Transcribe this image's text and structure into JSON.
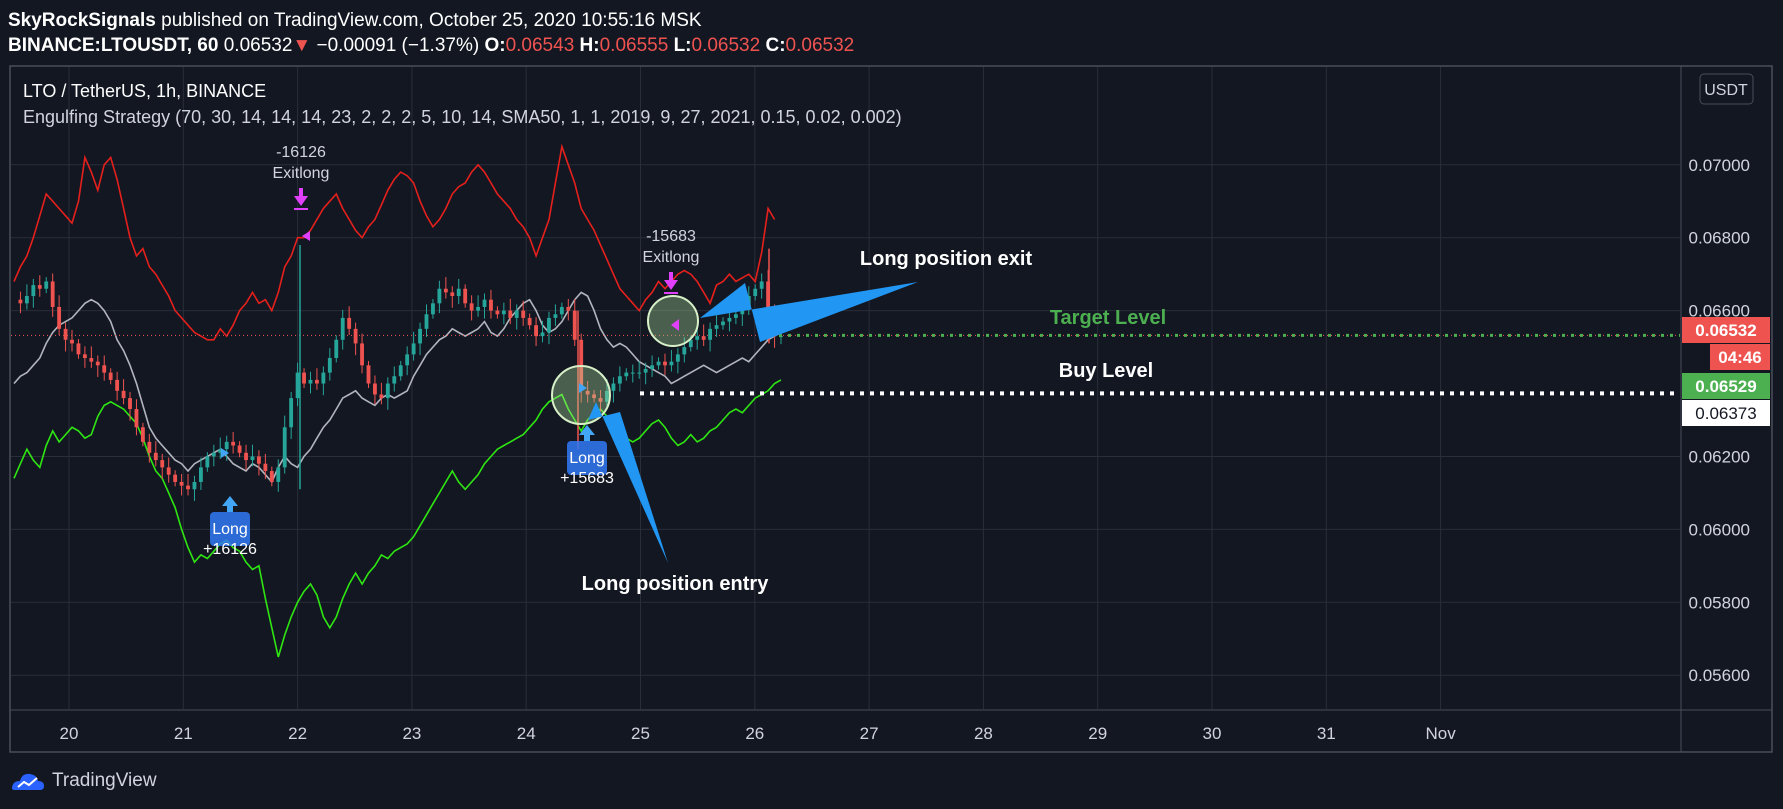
{
  "header": {
    "author": "SkyRockSignals",
    "published_text": "published on TradingView.com, October 25, 2020 10:55:16 MSK",
    "symbol": "BINANCE:LTOUSDT, 60",
    "price": "0.06532",
    "change": "−0.00091 (−1.37%)",
    "o_label": "O:",
    "o_value": "0.06543",
    "h_label": "H:",
    "h_value": "0.06555",
    "l_label": "L:",
    "l_value": "0.06532",
    "c_label": "C:",
    "c_value": "0.06532"
  },
  "legend": {
    "title": "LTO / TetherUS, 1h, BINANCE",
    "indicator": "Engulfing Strategy (70, 30, 14, 14, 14, 23, 2, 2, 2, 5, 10, 14, SMA50, 1, 1, 2019, 9, 27, 2021, 0.15, 0.02, 0.002)"
  },
  "currency_badge": "USDT",
  "footer": {
    "brand": "TradingView"
  },
  "colors": {
    "background": "#131722",
    "grid": "#2a2e39",
    "up": "#26a69a",
    "down": "#ef5350",
    "upper_band": "#e5201c",
    "lower_band": "#2ee612",
    "middle_line": "#b2b5be",
    "arrow": "#2196f3",
    "marker": "#e040fb",
    "target": "#4caf50"
  },
  "chart_data": {
    "type": "candlestick",
    "y_ticks": [
      "0.07000",
      "0.06800",
      "0.06600",
      "0.06200",
      "0.06000",
      "0.05800",
      "0.05600"
    ],
    "ylim": [
      0.0551,
      0.0726
    ],
    "x_ticks": [
      "20",
      "21",
      "22",
      "23",
      "24",
      "25",
      "26",
      "27",
      "28",
      "29",
      "30",
      "31",
      "Nov"
    ],
    "price_labels": {
      "last": "0.06532",
      "countdown": "04:46",
      "buy": "0.06529",
      "white": "0.06373"
    },
    "trades": [
      {
        "type": "entry",
        "label": "Long",
        "qty": "+16126",
        "date": "21"
      },
      {
        "type": "exit",
        "label": "Exitlong",
        "qty": "-16126",
        "date": "21.7"
      },
      {
        "type": "entry",
        "label": "Long",
        "qty": "+15683",
        "date": "23.9"
      },
      {
        "type": "exit",
        "label": "Exitlong",
        "qty": "-15683",
        "date": "24.6"
      }
    ],
    "annotations": {
      "exit": "Long position exit",
      "entry": "Long position entry",
      "target": "Target Level",
      "buy": "Buy Level"
    },
    "close_series": [
      0.0663,
      0.0662,
      0.0664,
      0.0667,
      0.0666,
      0.0668,
      0.0661,
      0.0655,
      0.0652,
      0.0651,
      0.0648,
      0.0647,
      0.0646,
      0.0645,
      0.0643,
      0.0641,
      0.0638,
      0.0636,
      0.0633,
      0.0628,
      0.0624,
      0.0621,
      0.0619,
      0.0617,
      0.0615,
      0.0613,
      0.0612,
      0.0611,
      0.0613,
      0.0617,
      0.062,
      0.0621,
      0.0622,
      0.0624,
      0.0623,
      0.0621,
      0.0619,
      0.062,
      0.0618,
      0.0616,
      0.0613,
      0.0617,
      0.0628,
      0.0636,
      0.0643,
      0.064,
      0.0641,
      0.064,
      0.0643,
      0.0647,
      0.0652,
      0.0658,
      0.0655,
      0.0651,
      0.0645,
      0.064,
      0.0637,
      0.0636,
      0.064,
      0.0642,
      0.0645,
      0.0648,
      0.0651,
      0.0655,
      0.0659,
      0.0662,
      0.0666,
      0.0665,
      0.0664,
      0.0666,
      0.0662,
      0.066,
      0.0661,
      0.0663,
      0.066,
      0.0659,
      0.066,
      0.0658,
      0.066,
      0.0658,
      0.0656,
      0.0653,
      0.0654,
      0.0658,
      0.0659,
      0.0661,
      0.066,
      0.0652,
      0.0638,
      0.0637,
      0.0636,
      0.0635,
      0.0638,
      0.064,
      0.0642,
      0.0643,
      0.0643,
      0.0643,
      0.0644,
      0.0645,
      0.0646,
      0.0645,
      0.0646,
      0.0648,
      0.065,
      0.0652,
      0.0653,
      0.0652,
      0.0655,
      0.0656,
      0.0657,
      0.0658,
      0.0659,
      0.0661,
      0.0664,
      0.0666,
      0.0668,
      0.066,
      0.0653,
      0.0653
    ],
    "upper_band": [
      0.0668,
      0.0672,
      0.0675,
      0.068,
      0.0686,
      0.0692,
      0.069,
      0.0688,
      0.0686,
      0.0684,
      0.069,
      0.0702,
      0.0698,
      0.0693,
      0.07,
      0.0702,
      0.0696,
      0.0688,
      0.068,
      0.0675,
      0.0677,
      0.0672,
      0.067,
      0.0667,
      0.0664,
      0.066,
      0.0658,
      0.0656,
      0.0654,
      0.0653,
      0.0652,
      0.0652,
      0.0655,
      0.0653,
      0.0656,
      0.066,
      0.0662,
      0.0665,
      0.0662,
      0.0663,
      0.066,
      0.0665,
      0.0672,
      0.0675,
      0.068,
      0.068,
      0.0682,
      0.0685,
      0.0688,
      0.069,
      0.0692,
      0.0688,
      0.0685,
      0.0682,
      0.068,
      0.0683,
      0.0685,
      0.0689,
      0.0693,
      0.0696,
      0.0698,
      0.0697,
      0.0695,
      0.069,
      0.0686,
      0.0683,
      0.0685,
      0.0688,
      0.0692,
      0.0694,
      0.0695,
      0.0698,
      0.07,
      0.0698,
      0.0695,
      0.0692,
      0.069,
      0.0688,
      0.0685,
      0.0683,
      0.068,
      0.0675,
      0.068,
      0.0685,
      0.0695,
      0.0705,
      0.07,
      0.0695,
      0.0688,
      0.0685,
      0.0682,
      0.0678,
      0.0674,
      0.067,
      0.0666,
      0.0664,
      0.0662,
      0.066,
      0.0663,
      0.0665,
      0.0668,
      0.0666,
      0.0668,
      0.067,
      0.0671,
      0.067,
      0.0668,
      0.0665,
      0.0662,
      0.0667,
      0.0668,
      0.067,
      0.0668,
      0.0669,
      0.067,
      0.0668,
      0.0676,
      0.0688,
      0.0685
    ],
    "middle_line": [
      0.064,
      0.0642,
      0.0643,
      0.0645,
      0.0647,
      0.0651,
      0.0654,
      0.0656,
      0.0657,
      0.0658,
      0.066,
      0.0662,
      0.0663,
      0.0662,
      0.066,
      0.0657,
      0.0652,
      0.0649,
      0.0645,
      0.064,
      0.0634,
      0.0628,
      0.0625,
      0.0623,
      0.0621,
      0.0619,
      0.0618,
      0.0616,
      0.0618,
      0.0619,
      0.062,
      0.0621,
      0.0622,
      0.062,
      0.0618,
      0.0617,
      0.0616,
      0.0618,
      0.0617,
      0.0615,
      0.0613,
      0.0617,
      0.062,
      0.0618,
      0.0617,
      0.062,
      0.0622,
      0.0625,
      0.0628,
      0.063,
      0.0633,
      0.0636,
      0.0637,
      0.0638,
      0.0636,
      0.0635,
      0.0634,
      0.0636,
      0.0637,
      0.0636,
      0.0637,
      0.0638,
      0.0642,
      0.0645,
      0.0648,
      0.065,
      0.0652,
      0.0653,
      0.0655,
      0.0654,
      0.0653,
      0.0654,
      0.0655,
      0.0657,
      0.0654,
      0.0653,
      0.0655,
      0.0658,
      0.066,
      0.0662,
      0.0663,
      0.066,
      0.0656,
      0.0654,
      0.0655,
      0.0657,
      0.066,
      0.0663,
      0.0665,
      0.0664,
      0.066,
      0.0655,
      0.0652,
      0.065,
      0.0651,
      0.065,
      0.0648,
      0.0646,
      0.0645,
      0.0644,
      0.0643,
      0.0642,
      0.064,
      0.0641,
      0.0642,
      0.0643,
      0.0644,
      0.0645,
      0.0644,
      0.0643,
      0.0644,
      0.0645,
      0.0646,
      0.0647,
      0.0646,
      0.0648,
      0.065,
      0.0652,
      0.0653,
      0.0654
    ],
    "lower_band": [
      0.0614,
      0.0618,
      0.0622,
      0.0619,
      0.0617,
      0.0623,
      0.0627,
      0.0624,
      0.0626,
      0.0628,
      0.0627,
      0.0625,
      0.0626,
      0.0631,
      0.0634,
      0.0635,
      0.0634,
      0.0633,
      0.0631,
      0.0629,
      0.0625,
      0.062,
      0.0616,
      0.0614,
      0.061,
      0.0606,
      0.06,
      0.0595,
      0.0591,
      0.0593,
      0.0592,
      0.0594,
      0.0596,
      0.0597,
      0.0595,
      0.0594,
      0.0591,
      0.0589,
      0.059,
      0.0581,
      0.0573,
      0.0565,
      0.0571,
      0.0576,
      0.058,
      0.0583,
      0.0585,
      0.0582,
      0.0576,
      0.0573,
      0.0576,
      0.0581,
      0.0585,
      0.0588,
      0.0585,
      0.0588,
      0.059,
      0.0593,
      0.0592,
      0.0594,
      0.0595,
      0.0596,
      0.0598,
      0.0601,
      0.0604,
      0.0607,
      0.061,
      0.0613,
      0.0616,
      0.0613,
      0.0611,
      0.0613,
      0.0615,
      0.0618,
      0.062,
      0.0622,
      0.0623,
      0.0624,
      0.0625,
      0.0626,
      0.0628,
      0.063,
      0.0633,
      0.0635,
      0.0636,
      0.0637,
      0.0633,
      0.063,
      0.0627,
      0.063,
      0.0632,
      0.0633,
      0.0631,
      0.0629,
      0.0627,
      0.0625,
      0.0624,
      0.0625,
      0.0627,
      0.0629,
      0.063,
      0.0628,
      0.0625,
      0.0623,
      0.0624,
      0.0626,
      0.0624,
      0.0625,
      0.0627,
      0.0628,
      0.063,
      0.0632,
      0.0633,
      0.0632,
      0.0634,
      0.0636,
      0.0637,
      0.0638,
      0.064,
      0.0641
    ]
  }
}
